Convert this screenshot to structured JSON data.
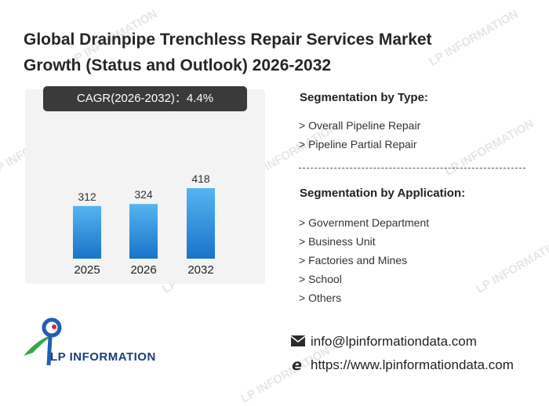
{
  "title_line1": "Global Drainpipe Trenchless Repair Services Market",
  "title_line2": "Growth (Status and Outlook) 2026-2032",
  "cagr_label": "CAGR(2026-2032)：4.4%",
  "chart_data": {
    "type": "bar",
    "categories": [
      "2025",
      "2026",
      "2032"
    ],
    "values": [
      312,
      324,
      418
    ],
    "title": "",
    "xlabel": "",
    "ylabel": "",
    "ylim": [
      0,
      418
    ],
    "grid": false,
    "colors": {
      "bar_top": "#56b4f0",
      "bar_bottom": "#1a73c9"
    }
  },
  "segmentation_type": {
    "title": "Segmentation by Type:",
    "items": [
      "> Overall Pipeline Repair",
      "> Pipeline Partial Repair"
    ]
  },
  "segmentation_application": {
    "title": "Segmentation by Application:",
    "items": [
      "> Government Department",
      "> Business Unit",
      "> Factories and Mines",
      "> School",
      "> Others"
    ]
  },
  "logo": {
    "name": "LP INFORMATION",
    "icon": "lp-logo-icon"
  },
  "contact": {
    "email": "info@lpinformationdata.com",
    "website": "https://www.lpinformationdata.com",
    "email_icon": "mail-icon",
    "web_icon": "globe-e-icon"
  },
  "watermark_text": "LP INFORMATION"
}
